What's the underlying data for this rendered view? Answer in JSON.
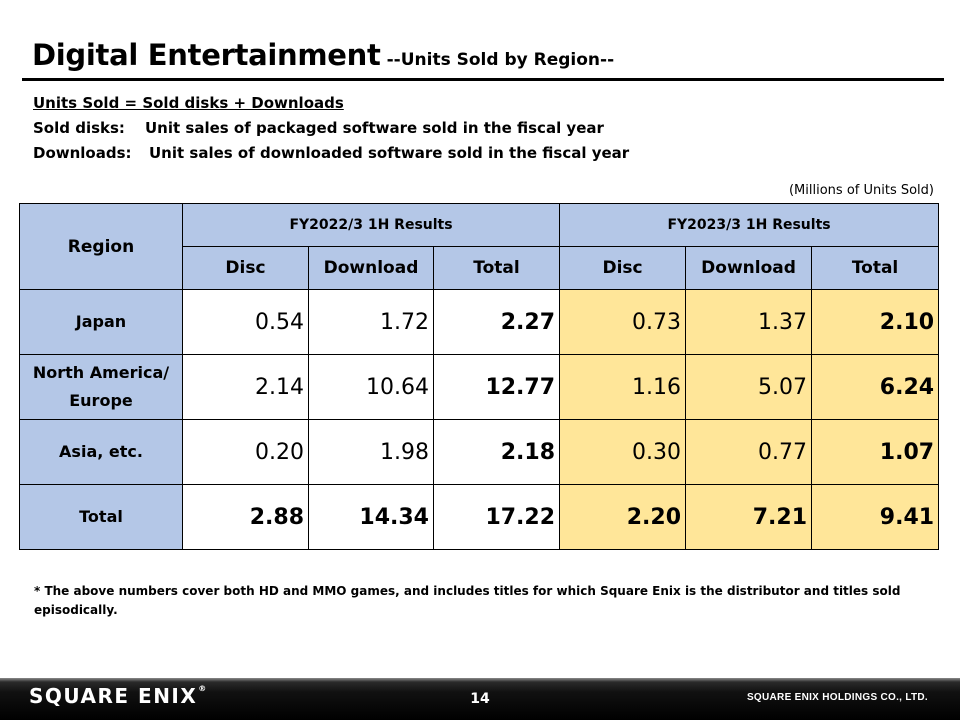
{
  "title": {
    "main": "Digital Entertainment",
    "sub": "--Units Sold by Region--"
  },
  "definitions": {
    "formula": "Units Sold = Sold disks + Downloads",
    "disks_label": "Sold disks:",
    "disks_text": "Unit sales of packaged software sold in the fiscal year",
    "downloads_label": "Downloads:",
    "downloads_text": "Unit sales of downloaded software sold in the fiscal year"
  },
  "unit_note": "(Millions of Units Sold)",
  "table": {
    "region_header": "Region",
    "periods": [
      "FY2022/3 1H Results",
      "FY2023/3 1H Results"
    ],
    "columns": [
      "Disc",
      "Download",
      "Total",
      "Disc",
      "Download",
      "Total"
    ],
    "rows": [
      {
        "region_line1": "Japan",
        "region_line2": "",
        "values": [
          "0.54",
          "1.72",
          "2.27",
          "0.73",
          "1.37",
          "2.10"
        ]
      },
      {
        "region_line1": "North America/",
        "region_line2": "Europe",
        "values": [
          "2.14",
          "10.64",
          "12.77",
          "1.16",
          "5.07",
          "6.24"
        ]
      },
      {
        "region_line1": "Asia, etc.",
        "region_line2": "",
        "values": [
          "0.20",
          "1.98",
          "2.18",
          "0.30",
          "0.77",
          "1.07"
        ]
      },
      {
        "region_line1": "Total",
        "region_line2": "",
        "values": [
          "2.88",
          "14.34",
          "17.22",
          "2.20",
          "7.21",
          "9.41"
        ]
      }
    ]
  },
  "footnote": "*  The above numbers cover both HD and MMO games, and includes titles for which Square Enix is the distributor and titles sold episodically.",
  "footer": {
    "logo": "SQUARE ENIX",
    "logo_mark": "®",
    "page_number": "14",
    "company": "SQUARE ENIX HOLDINGS CO., LTD."
  },
  "colors": {
    "header_fill": "#b4c7e7",
    "fy2023_fill": "#ffe699"
  }
}
